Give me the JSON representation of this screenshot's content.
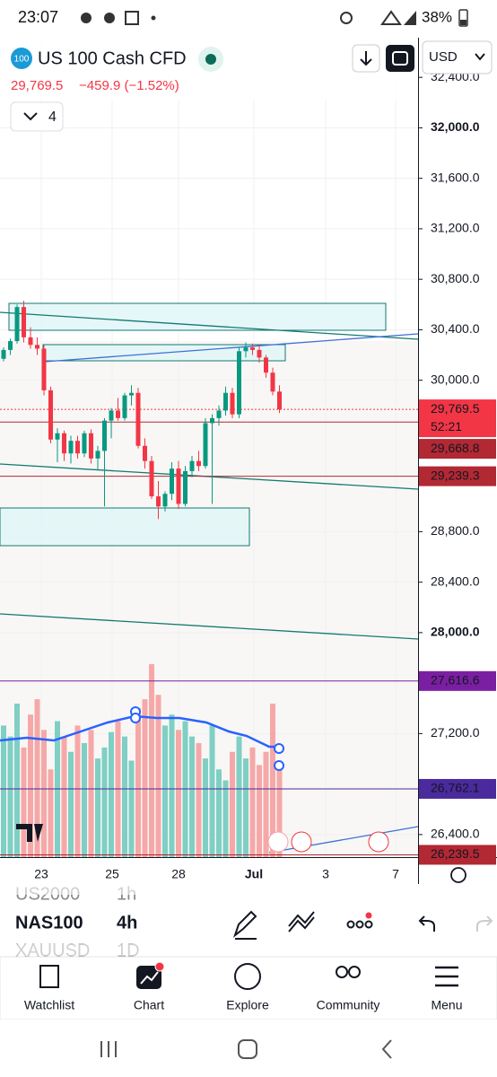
{
  "status_bar": {
    "time": "23:07",
    "battery": "38%"
  },
  "header": {
    "badge": "100",
    "symbol": "US 100 Cash CFD",
    "currency": "USD"
  },
  "quote": {
    "price": "29,769.5",
    "change": "−459.9 (−1.52%)"
  },
  "indicators": {
    "count": "4"
  },
  "chart_data": {
    "type": "candlestick",
    "ylim": [
      26200,
      32700
    ],
    "yticks": [
      {
        "value": 32400,
        "label": "32,400.0"
      },
      {
        "value": 32000,
        "label": "32,000.0"
      },
      {
        "value": 31600,
        "label": "31,600.0"
      },
      {
        "value": 31200,
        "label": "31,200.0"
      },
      {
        "value": 30800,
        "label": "30,800.0"
      },
      {
        "value": 30400,
        "label": "30,400.0"
      },
      {
        "value": 30000,
        "label": "30,000.0"
      },
      {
        "value": 28800,
        "label": "28,800.0"
      },
      {
        "value": 28400,
        "label": "28,400.0"
      },
      {
        "value": 28000,
        "label": "28,000.0"
      },
      {
        "value": 27200,
        "label": "27,200.0"
      },
      {
        "value": 26400,
        "label": "26,400.0"
      }
    ],
    "x_labels": [
      "23",
      "25",
      "28",
      "Jul",
      "3",
      "7"
    ],
    "open": [
      30170,
      30240,
      30310,
      30580,
      30340,
      30280,
      30250,
      29920,
      29530,
      29580,
      29420,
      29520,
      29420,
      29580,
      29380,
      29440,
      29680,
      29760,
      29700,
      29880,
      29900,
      29480,
      29360,
      29080,
      29000,
      29100,
      29300,
      29020,
      29280,
      29360,
      29320,
      29660,
      29700,
      29760,
      29900,
      29730,
      30230,
      30260,
      30240,
      30180,
      30060,
      29910
    ],
    "high": [
      30260,
      30330,
      30600,
      30630,
      30420,
      30340,
      30280,
      29950,
      29620,
      29600,
      29560,
      29560,
      29600,
      29610,
      29480,
      29700,
      29780,
      29860,
      29900,
      29960,
      29940,
      29540,
      29400,
      29200,
      29120,
      29350,
      29360,
      29320,
      29400,
      29440,
      29700,
      29730,
      29800,
      29950,
      29940,
      30260,
      30300,
      30290,
      30280,
      30200,
      30100,
      29960
    ],
    "low": [
      30150,
      30200,
      30290,
      30300,
      30250,
      30200,
      29880,
      29500,
      29350,
      29360,
      29340,
      29380,
      29390,
      29340,
      29290,
      29000,
      29540,
      29680,
      29680,
      29800,
      29460,
      29300,
      29060,
      28900,
      28960,
      29050,
      28980,
      29000,
      29230,
      29280,
      29300,
      29020,
      29640,
      29720,
      29700,
      29700,
      30180,
      30200,
      30140,
      30020,
      29880,
      29740
    ],
    "close": [
      30240,
      30310,
      30580,
      30340,
      30280,
      30250,
      29920,
      29530,
      29580,
      29420,
      29520,
      29420,
      29580,
      29380,
      29440,
      29680,
      29760,
      29700,
      29880,
      29900,
      29480,
      29360,
      29080,
      29000,
      29100,
      29300,
      29020,
      29280,
      29360,
      29320,
      29660,
      29700,
      29760,
      29900,
      29730,
      30230,
      30260,
      30240,
      30180,
      30060,
      29910,
      29769.5
    ],
    "volume": [
      60,
      55,
      70,
      50,
      65,
      72,
      58,
      40,
      62,
      55,
      48,
      60,
      52,
      58,
      45,
      50,
      57,
      62,
      55,
      44,
      68,
      72,
      88,
      74,
      60,
      65,
      58,
      62,
      55,
      52,
      45,
      60,
      40,
      35,
      48,
      55,
      45,
      50,
      42,
      48,
      70,
      44
    ],
    "price_badges": [
      {
        "value": 29769.5,
        "label": "29,769.5",
        "timer": "52:21"
      },
      {
        "value": 29668.8,
        "label": "29,668.8"
      },
      {
        "value": 29239.3,
        "label": "29,239.3"
      },
      {
        "value": 27616.6,
        "label": "27,616.6"
      },
      {
        "value": 26762.1,
        "label": "26,762.1"
      },
      {
        "value": 26239.5,
        "label": "26,239.5"
      }
    ]
  },
  "symbols": [
    {
      "name": "US2000",
      "interval": "1h"
    },
    {
      "name": "NAS100",
      "interval": "4h"
    },
    {
      "name": "XAUUSD",
      "interval": "1D"
    }
  ],
  "nav": [
    "Watchlist",
    "Chart",
    "Explore",
    "Community",
    "Menu"
  ]
}
